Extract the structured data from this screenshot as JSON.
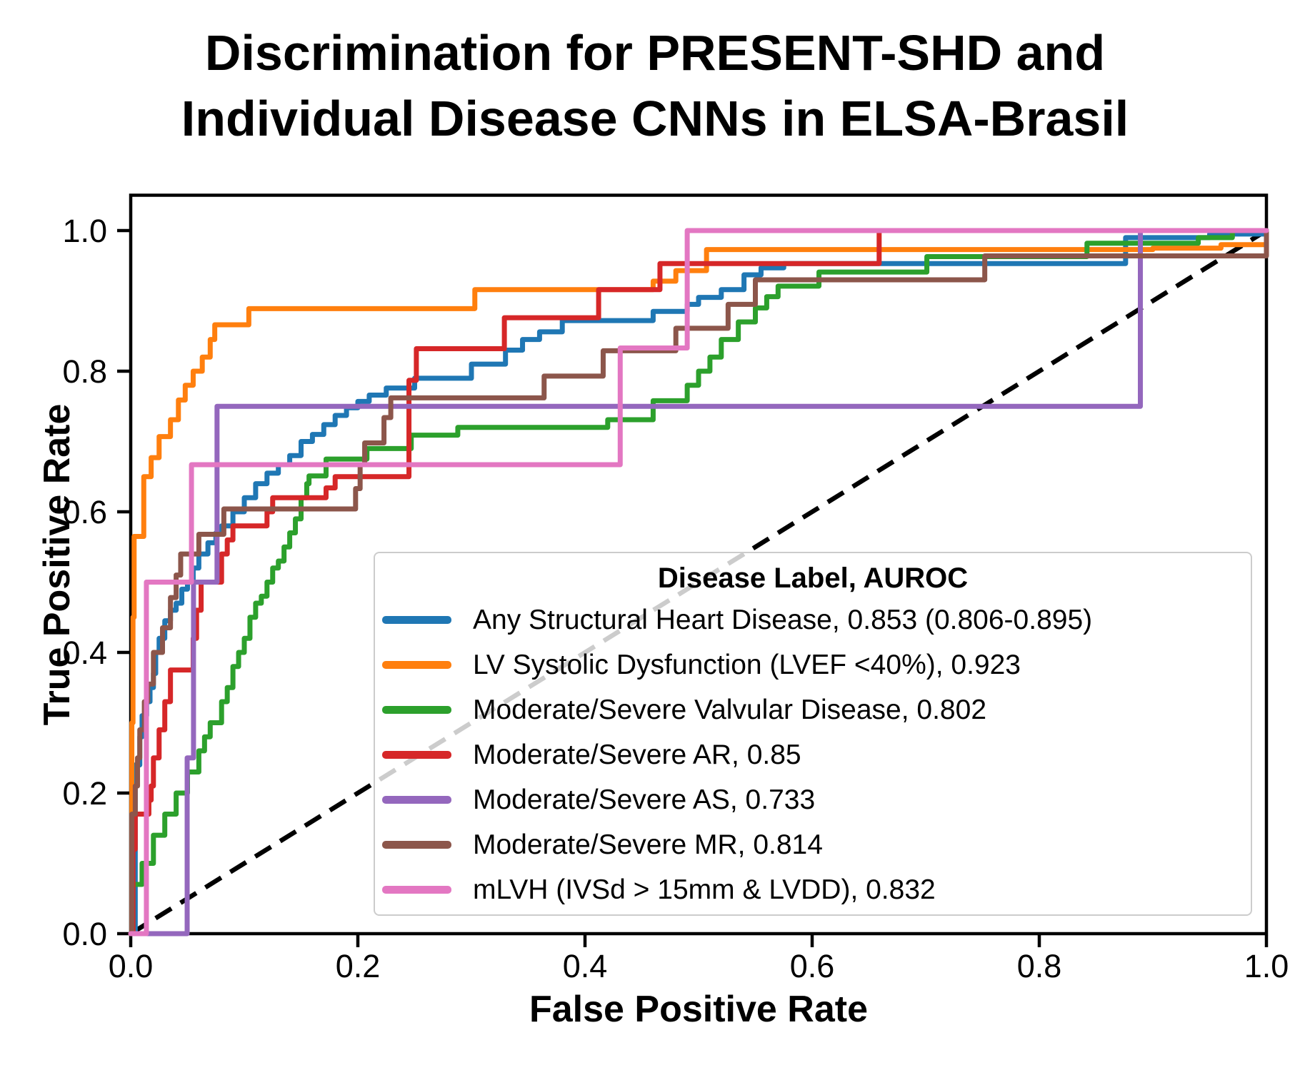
{
  "title": {
    "line1": "Discrimination for PRESENT-SHD and",
    "line2": "Individual Disease CNNs in ELSA-Brasil"
  },
  "chart_data": {
    "type": "line",
    "subtype": "roc_curves",
    "title": "Discrimination for PRESENT-SHD and Individual Disease CNNs in ELSA-Brasil",
    "xlabel": "False Positive Rate",
    "ylabel": "True Positive Rate",
    "xlim": [
      0.0,
      1.0
    ],
    "ylim": [
      0.0,
      1.05
    ],
    "x_tick_values": [
      0.0,
      0.2,
      0.4,
      0.6,
      0.8,
      1.0
    ],
    "x_tick_labels": [
      "0.0",
      "0.2",
      "0.4",
      "0.6",
      "0.8",
      "1.0"
    ],
    "y_tick_values": [
      0.0,
      0.2,
      0.4,
      0.6,
      0.8,
      1.0
    ],
    "y_tick_labels": [
      "0.0",
      "0.2",
      "0.4",
      "0.6",
      "0.8",
      "1.0"
    ],
    "grid": false,
    "legend": {
      "title": "Disease Label, AUROC",
      "position": "lower right"
    },
    "reference_line": {
      "name": "chance-diagonal",
      "color": "#000000",
      "style": "dashed",
      "points": [
        [
          0,
          0
        ],
        [
          1,
          1
        ]
      ]
    },
    "series": [
      {
        "name": "Any Structural Heart Disease, 0.853 (0.806-0.895)",
        "auroc": 0.853,
        "auroc_ci": "0.806-0.895",
        "color": "#1f77b4",
        "points": [
          [
            0,
            0
          ],
          [
            0.004,
            0.24
          ],
          [
            0.008,
            0.28
          ],
          [
            0.01,
            0.31
          ],
          [
            0.014,
            0.33
          ],
          [
            0.017,
            0.35
          ],
          [
            0.02,
            0.37
          ],
          [
            0.022,
            0.4
          ],
          [
            0.025,
            0.42
          ],
          [
            0.03,
            0.445
          ],
          [
            0.035,
            0.46
          ],
          [
            0.04,
            0.47
          ],
          [
            0.045,
            0.49
          ],
          [
            0.05,
            0.5
          ],
          [
            0.055,
            0.52
          ],
          [
            0.06,
            0.54
          ],
          [
            0.068,
            0.556
          ],
          [
            0.075,
            0.57
          ],
          [
            0.08,
            0.58
          ],
          [
            0.09,
            0.6
          ],
          [
            0.1,
            0.62
          ],
          [
            0.11,
            0.64
          ],
          [
            0.12,
            0.655
          ],
          [
            0.13,
            0.667
          ],
          [
            0.14,
            0.68
          ],
          [
            0.15,
            0.7
          ],
          [
            0.16,
            0.71
          ],
          [
            0.17,
            0.724
          ],
          [
            0.18,
            0.737
          ],
          [
            0.19,
            0.748
          ],
          [
            0.2,
            0.757
          ],
          [
            0.21,
            0.766
          ],
          [
            0.225,
            0.776
          ],
          [
            0.25,
            0.79
          ],
          [
            0.3,
            0.81
          ],
          [
            0.33,
            0.83
          ],
          [
            0.345,
            0.845
          ],
          [
            0.36,
            0.856
          ],
          [
            0.38,
            0.872
          ],
          [
            0.46,
            0.885
          ],
          [
            0.49,
            0.895
          ],
          [
            0.5,
            0.905
          ],
          [
            0.52,
            0.916
          ],
          [
            0.54,
            0.937
          ],
          [
            0.555,
            0.947
          ],
          [
            0.575,
            0.953
          ],
          [
            0.876,
            0.99
          ],
          [
            0.95,
            0.995
          ],
          [
            1,
            1
          ]
        ]
      },
      {
        "name": "LV Systolic Dysfunction (LVEF <40%), 0.923",
        "auroc": 0.923,
        "color": "#ff7f0e",
        "points": [
          [
            0,
            0
          ],
          [
            0.001,
            0.3
          ],
          [
            0.002,
            0.45
          ],
          [
            0.003,
            0.565
          ],
          [
            0.0115,
            0.65
          ],
          [
            0.018,
            0.677
          ],
          [
            0.025,
            0.707
          ],
          [
            0.035,
            0.731
          ],
          [
            0.042,
            0.759
          ],
          [
            0.048,
            0.78
          ],
          [
            0.055,
            0.8
          ],
          [
            0.063,
            0.82
          ],
          [
            0.07,
            0.845
          ],
          [
            0.074,
            0.866
          ],
          [
            0.104,
            0.889
          ],
          [
            0.303,
            0.916
          ],
          [
            0.46,
            0.928
          ],
          [
            0.48,
            0.943
          ],
          [
            0.507,
            0.973
          ],
          [
            0.9,
            0.975
          ],
          [
            0.96,
            0.98
          ],
          [
            1,
            1
          ]
        ]
      },
      {
        "name": "Moderate/Severe Valvular Disease, 0.802",
        "auroc": 0.802,
        "color": "#2ca02c",
        "points": [
          [
            0,
            0
          ],
          [
            0.002,
            0.07
          ],
          [
            0.01,
            0.1
          ],
          [
            0.02,
            0.14
          ],
          [
            0.03,
            0.17
          ],
          [
            0.04,
            0.2
          ],
          [
            0.05,
            0.23
          ],
          [
            0.06,
            0.26
          ],
          [
            0.065,
            0.28
          ],
          [
            0.07,
            0.3
          ],
          [
            0.08,
            0.33
          ],
          [
            0.085,
            0.35
          ],
          [
            0.09,
            0.38
          ],
          [
            0.095,
            0.4
          ],
          [
            0.1,
            0.42
          ],
          [
            0.105,
            0.45
          ],
          [
            0.11,
            0.47
          ],
          [
            0.115,
            0.48
          ],
          [
            0.12,
            0.5
          ],
          [
            0.125,
            0.52
          ],
          [
            0.13,
            0.53
          ],
          [
            0.135,
            0.55
          ],
          [
            0.14,
            0.57
          ],
          [
            0.145,
            0.59
          ],
          [
            0.15,
            0.62
          ],
          [
            0.155,
            0.64
          ],
          [
            0.157,
            0.651
          ],
          [
            0.172,
            0.675
          ],
          [
            0.208,
            0.69
          ],
          [
            0.247,
            0.709
          ],
          [
            0.288,
            0.72
          ],
          [
            0.42,
            0.731
          ],
          [
            0.46,
            0.758
          ],
          [
            0.49,
            0.78
          ],
          [
            0.5,
            0.8
          ],
          [
            0.51,
            0.82
          ],
          [
            0.52,
            0.845
          ],
          [
            0.535,
            0.87
          ],
          [
            0.55,
            0.89
          ],
          [
            0.56,
            0.906
          ],
          [
            0.57,
            0.921
          ],
          [
            0.606,
            0.941
          ],
          [
            0.701,
            0.963
          ],
          [
            0.842,
            0.982
          ],
          [
            0.94,
            0.99
          ],
          [
            0.97,
            1.0
          ],
          [
            1,
            1
          ]
        ]
      },
      {
        "name": "Moderate/Severe AR, 0.85",
        "auroc": 0.85,
        "color": "#d62728",
        "points": [
          [
            0,
            0
          ],
          [
            0.002,
            0.12
          ],
          [
            0.004,
            0.17
          ],
          [
            0.016,
            0.19
          ],
          [
            0.018,
            0.21
          ],
          [
            0.02,
            0.25
          ],
          [
            0.025,
            0.29
          ],
          [
            0.03,
            0.33
          ],
          [
            0.035,
            0.375
          ],
          [
            0.055,
            0.42
          ],
          [
            0.058,
            0.46
          ],
          [
            0.062,
            0.5
          ],
          [
            0.08,
            0.54
          ],
          [
            0.085,
            0.56
          ],
          [
            0.09,
            0.58
          ],
          [
            0.12,
            0.6
          ],
          [
            0.125,
            0.62
          ],
          [
            0.172,
            0.634
          ],
          [
            0.18,
            0.65
          ],
          [
            0.245,
            0.787
          ],
          [
            0.2515,
            0.832
          ],
          [
            0.329,
            0.876
          ],
          [
            0.412,
            0.916
          ],
          [
            0.466,
            0.953
          ],
          [
            0.659,
            1.0
          ],
          [
            1,
            1
          ]
        ]
      },
      {
        "name": "Moderate/Severe AS, 0.733",
        "auroc": 0.733,
        "color": "#9467bd",
        "points": [
          [
            0,
            0
          ],
          [
            0.0497,
            0.25
          ],
          [
            0.0553,
            0.5
          ],
          [
            0.076,
            0.75
          ],
          [
            0.889,
            1.0
          ],
          [
            1,
            1
          ]
        ]
      },
      {
        "name": "Moderate/Severe MR, 0.814",
        "auroc": 0.814,
        "color": "#8c564b",
        "points": [
          [
            0,
            0
          ],
          [
            0.001,
            0.17
          ],
          [
            0.004,
            0.21
          ],
          [
            0.006,
            0.25
          ],
          [
            0.008,
            0.29
          ],
          [
            0.012,
            0.33
          ],
          [
            0.015,
            0.355
          ],
          [
            0.02,
            0.4
          ],
          [
            0.028,
            0.435
          ],
          [
            0.035,
            0.478
          ],
          [
            0.04,
            0.51
          ],
          [
            0.044,
            0.54
          ],
          [
            0.06,
            0.568
          ],
          [
            0.082,
            0.604
          ],
          [
            0.198,
            0.633
          ],
          [
            0.202,
            0.667
          ],
          [
            0.206,
            0.698
          ],
          [
            0.223,
            0.734
          ],
          [
            0.229,
            0.762
          ],
          [
            0.364,
            0.793
          ],
          [
            0.416,
            0.829
          ],
          [
            0.48,
            0.861
          ],
          [
            0.526,
            0.895
          ],
          [
            0.55,
            0.93
          ],
          [
            0.752,
            0.964
          ],
          [
            1,
            1
          ]
        ]
      },
      {
        "name": "mLVH (IVSd > 15mm & LVDD), 0.832",
        "auroc": 0.832,
        "color": "#e377c2",
        "points": [
          [
            0,
            0
          ],
          [
            0.0138,
            0.5
          ],
          [
            0.0535,
            0.667
          ],
          [
            0.431,
            0.833
          ],
          [
            0.49,
            1.0
          ],
          [
            1,
            1
          ]
        ]
      }
    ]
  }
}
